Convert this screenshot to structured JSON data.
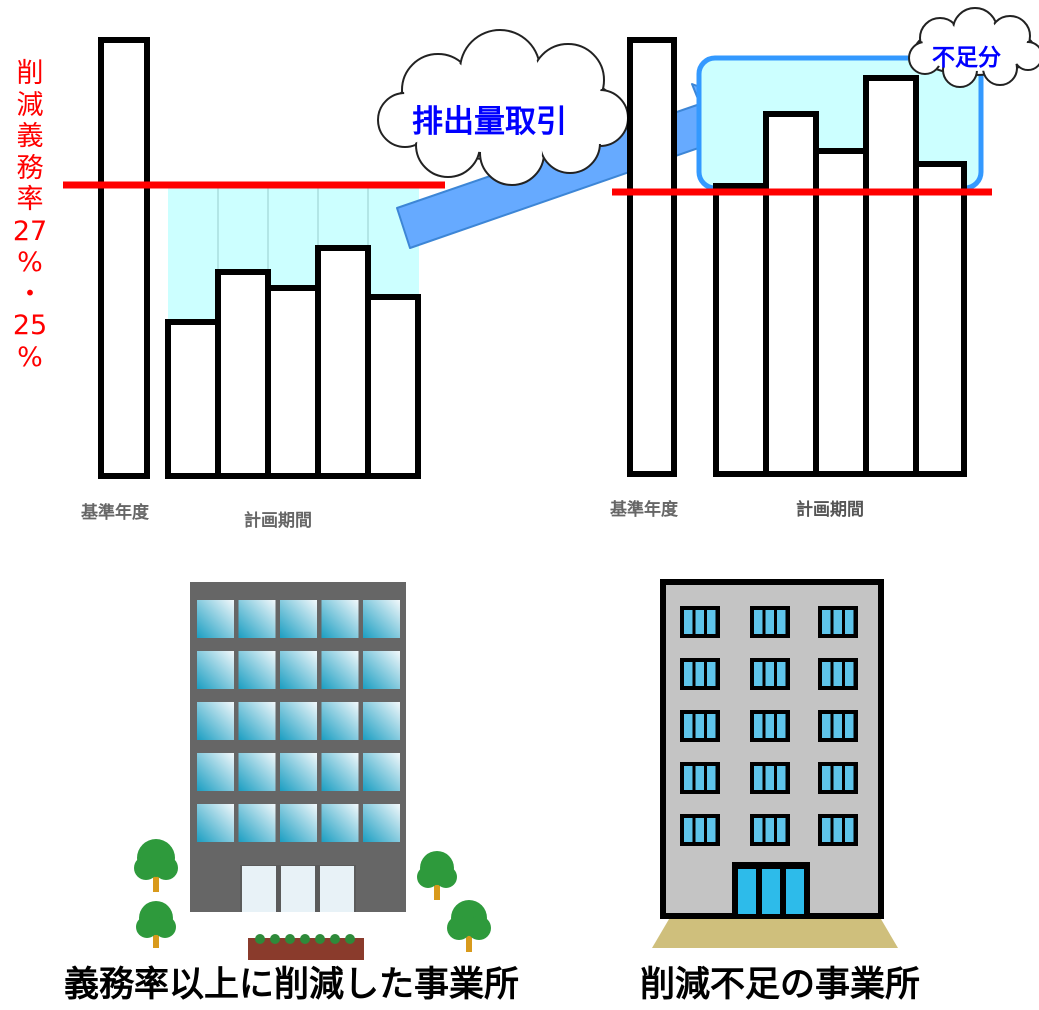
{
  "left_panel": {
    "vertical_label": "削減義務率\n27\n%\n・\n25\n%",
    "base_year_label": "基準年度",
    "plan_period_label": "計画期間"
  },
  "trading_cloud": {
    "label": "排出量取引"
  },
  "shortfall_cloud": {
    "label": "不足分"
  },
  "right_panel": {
    "base_year_label": "基準年度",
    "plan_period_label": "計画期間"
  },
  "captions": {
    "left": "義務率以上に削減した事業所",
    "right": "削減不足の事業所"
  },
  "colors": {
    "target_line": "#ff0000",
    "surplus_fill": "#ccffff",
    "shortfall_box_border": "#3399ff",
    "arrow": "#66aaff",
    "cloud_text": "#0000ff",
    "building_left": "#666666",
    "building_right": "#c4c4c4",
    "window_right": "#5ec4ea"
  }
}
